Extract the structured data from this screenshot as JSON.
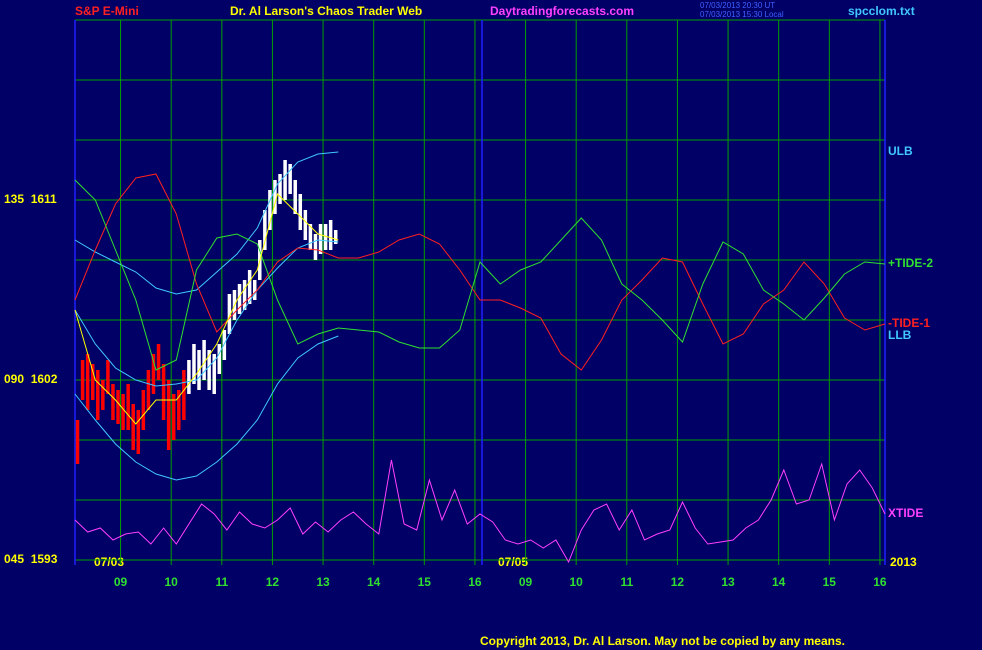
{
  "chart_data": {
    "type": "line",
    "instrument": "S&P E-Mini",
    "title": "Dr. Al Larson's Chaos Trader Web",
    "site": "Daytradingforecasts.com",
    "timestamp_ut": "07/03/2013 20:30 UT",
    "timestamp_local": "07/03/2013 15:30 Local",
    "file": "spcclom.txt",
    "copyright": "Copyright 2013, Dr. Al Larson. May not be copied by any means.",
    "date_labels": [
      "07/03",
      "07/05"
    ],
    "year_label": "2013",
    "xlim": [
      0,
      16
    ],
    "ylim": [
      1592.75,
      1620
    ],
    "xticks": [
      {
        "value": 0.9,
        "label": "09"
      },
      {
        "value": 1.9,
        "label": "10"
      },
      {
        "value": 2.9,
        "label": "11"
      },
      {
        "value": 3.9,
        "label": "12"
      },
      {
        "value": 4.9,
        "label": "13"
      },
      {
        "value": 5.9,
        "label": "14"
      },
      {
        "value": 6.9,
        "label": "15"
      },
      {
        "value": 7.9,
        "label": "16"
      },
      {
        "value": 8.9,
        "label": "09"
      },
      {
        "value": 9.9,
        "label": "10"
      },
      {
        "value": 10.9,
        "label": "11"
      },
      {
        "value": 11.9,
        "label": "12"
      },
      {
        "value": 12.9,
        "label": "13"
      },
      {
        "value": 13.9,
        "label": "14"
      },
      {
        "value": 14.9,
        "label": "15"
      },
      {
        "value": 15.9,
        "label": "16"
      }
    ],
    "yticks": [
      {
        "value": 1611,
        "label": "135  1611"
      },
      {
        "value": 1602,
        "label": "090  1602"
      },
      {
        "value": 1593,
        "label": "045  1593"
      }
    ],
    "ygrid": [
      1593,
      1596,
      1599,
      1602,
      1605,
      1608,
      1611,
      1614,
      1617,
      1620
    ],
    "grid": true,
    "grid_color": "#00a000",
    "bars": [
      {
        "color": "#ff0000",
        "x": [
          0.05,
          0.15,
          0.25,
          0.35,
          0.45,
          0.55,
          0.65,
          0.75,
          0.85,
          0.95,
          1.05,
          1.15,
          1.25,
          1.35,
          1.45,
          1.55,
          1.65,
          1.75,
          1.85,
          1.95,
          2.05,
          2.15
        ],
        "high": [
          1600,
          1603,
          1603.3,
          1602.8,
          1602.5,
          1602,
          1603,
          1601.8,
          1601.5,
          1601.3,
          1601.8,
          1600.8,
          1600.5,
          1601.5,
          1602.5,
          1603.3,
          1603.8,
          1602.8,
          1602,
          1601.3,
          1601.5,
          1602.5
        ],
        "low": [
          1597.8,
          1601,
          1600.5,
          1601,
          1600,
          1600.5,
          1601.3,
          1600,
          1599.8,
          1599.5,
          1599.5,
          1598.5,
          1598.3,
          1599.5,
          1600.5,
          1601.3,
          1602,
          1600,
          1598.5,
          1599,
          1599.5,
          1600
        ]
      },
      {
        "color": "#ffffff",
        "x": [
          2.25,
          2.35,
          2.45,
          2.55,
          2.65,
          2.75,
          2.85,
          2.95,
          3.05,
          3.15,
          3.25,
          3.35,
          3.45,
          3.55,
          3.65,
          3.75,
          3.85,
          3.95,
          4.05,
          4.15,
          4.25,
          4.35,
          4.45,
          4.55,
          4.65,
          4.75,
          4.85,
          4.95,
          5.05,
          5.15
        ],
        "high": [
          1603,
          1603.8,
          1603.5,
          1604,
          1603.5,
          1603.3,
          1603.8,
          1604.5,
          1606.3,
          1606.5,
          1606.8,
          1607,
          1607.5,
          1607,
          1609,
          1610.5,
          1611.5,
          1612,
          1612.3,
          1613,
          1612.8,
          1612,
          1611.3,
          1610.5,
          1609.8,
          1609.3,
          1609.8,
          1609.8,
          1610,
          1609.5
        ],
        "low": [
          1601.3,
          1601.8,
          1601.5,
          1602,
          1601.5,
          1601.3,
          1602.3,
          1603,
          1604.3,
          1605,
          1605.3,
          1605.5,
          1605.8,
          1606,
          1607,
          1608.5,
          1609.5,
          1610.3,
          1610.8,
          1611,
          1611.3,
          1610.3,
          1609.5,
          1609,
          1608.5,
          1608,
          1608.3,
          1608.5,
          1608.5,
          1608.8
        ]
      }
    ],
    "series": [
      {
        "name": "ULB",
        "color": "#40c8ff",
        "x": [
          0,
          0.4,
          0.8,
          1.2,
          1.6,
          2,
          2.4,
          2.8,
          3.2,
          3.6,
          4,
          4.4,
          4.8,
          5.2
        ],
        "values": [
          1609,
          1608.4,
          1607.9,
          1607.4,
          1606.6,
          1606.3,
          1606.5,
          1607.4,
          1608.3,
          1609.6,
          1611.8,
          1612.9,
          1613.3,
          1613.4
        ]
      },
      {
        "color": "#40c8ff",
        "x": [
          0,
          0.4,
          0.8,
          1.2,
          1.6,
          2,
          2.4,
          2.8,
          3.2,
          3.6,
          4,
          4.4,
          4.8,
          5.2
        ],
        "values": [
          1605.5,
          1603.8,
          1602.6,
          1602,
          1601.7,
          1601.8,
          1602,
          1603.1,
          1605,
          1606.5,
          1607.6,
          1608.6,
          1609,
          1608.9
        ]
      },
      {
        "name": "LLB",
        "color": "#40c8ff",
        "x": [
          0,
          0.4,
          0.8,
          1.2,
          1.6,
          2,
          2.4,
          2.8,
          3.2,
          3.6,
          4,
          4.4,
          4.8,
          5.2
        ],
        "values": [
          1601.3,
          1600,
          1598.8,
          1597.9,
          1597.3,
          1597,
          1597.2,
          1597.9,
          1598.8,
          1600,
          1601.8,
          1603.1,
          1603.8,
          1604.2
        ]
      },
      {
        "name": "-TIDE-1",
        "color": "#ff2020",
        "x": [
          0,
          0.4,
          0.8,
          1.2,
          1.6,
          2,
          2.4,
          2.8,
          3.2,
          3.6,
          4,
          4.4,
          4.8,
          5.2,
          5.6,
          6,
          6.4,
          6.8,
          7.2,
          7.6,
          8,
          8.4,
          8.8,
          9.2,
          9.6,
          10,
          10.4,
          10.8,
          11.2,
          11.6,
          12,
          12.4,
          12.8,
          13.2,
          13.6,
          14,
          14.4,
          14.8,
          15.2,
          15.6,
          16
        ],
        "values": [
          1606,
          1608.5,
          1610.8,
          1612.1,
          1612.3,
          1610.3,
          1606.8,
          1604.4,
          1605.5,
          1606.5,
          1607.9,
          1608.6,
          1608.5,
          1608.1,
          1608.1,
          1608.4,
          1609,
          1609.3,
          1608.8,
          1607.5,
          1606,
          1606,
          1605.6,
          1605.1,
          1603.3,
          1602.5,
          1604,
          1606,
          1607,
          1608.1,
          1607.9,
          1605.8,
          1603.8,
          1604.3,
          1605.8,
          1606.5,
          1607.9,
          1606.8,
          1605.1,
          1604.5,
          1604.8
        ]
      },
      {
        "name": "+TIDE-2",
        "color": "#30e030",
        "x": [
          0,
          0.4,
          0.8,
          1.2,
          1.6,
          2,
          2.4,
          2.8,
          3.2,
          3.6,
          4,
          4.4,
          4.8,
          5.2,
          5.6,
          6,
          6.4,
          6.8,
          7.2,
          7.6,
          8,
          8.4,
          8.8,
          9.2,
          9.6,
          10,
          10.4,
          10.8,
          11.2,
          11.6,
          12,
          12.4,
          12.8,
          13.2,
          13.6,
          14,
          14.4,
          14.8,
          15.2,
          15.6,
          16
        ],
        "values": [
          1612,
          1611,
          1608.5,
          1606,
          1602.5,
          1603,
          1607.5,
          1609.1,
          1609.3,
          1608.8,
          1606,
          1603.8,
          1604.3,
          1604.6,
          1604.5,
          1604.4,
          1603.9,
          1603.6,
          1603.6,
          1604.5,
          1607.9,
          1606.8,
          1607.5,
          1607.9,
          1609,
          1610.1,
          1609,
          1606.8,
          1606,
          1605,
          1603.9,
          1606.8,
          1608.9,
          1608.3,
          1606.5,
          1605.8,
          1605,
          1606.1,
          1607.3,
          1607.9,
          1607.8
        ]
      },
      {
        "name": "XTIDE",
        "color": "#ff40ff",
        "x": [
          0,
          0.25,
          0.5,
          0.75,
          1,
          1.25,
          1.5,
          1.75,
          2,
          2.25,
          2.5,
          2.75,
          3,
          3.25,
          3.5,
          3.75,
          4,
          4.25,
          4.5,
          4.75,
          5,
          5.25,
          5.5,
          5.75,
          6,
          6.25,
          6.5,
          6.75,
          7,
          7.25,
          7.5,
          7.75,
          8,
          8.25,
          8.5,
          8.75,
          9,
          9.25,
          9.5,
          9.75,
          10,
          10.25,
          10.5,
          10.75,
          11,
          11.25,
          11.5,
          11.75,
          12,
          12.25,
          12.5,
          12.75,
          13,
          13.25,
          13.5,
          13.75,
          14,
          14.25,
          14.5,
          14.75,
          15,
          15.25,
          15.5,
          15.75,
          16
        ],
        "values": [
          1595,
          1594.4,
          1594.6,
          1594,
          1594.3,
          1594.4,
          1593.8,
          1594.6,
          1593.8,
          1594.8,
          1595.8,
          1595.3,
          1594.5,
          1595.4,
          1594.8,
          1594.6,
          1595,
          1595.6,
          1594.3,
          1594.9,
          1594.4,
          1595,
          1595.4,
          1594.8,
          1594.3,
          1598,
          1594.8,
          1594.5,
          1597,
          1595,
          1596.5,
          1594.8,
          1595.3,
          1594.9,
          1594,
          1593.8,
          1594,
          1593.6,
          1594,
          1592.9,
          1594.5,
          1595.5,
          1595.8,
          1594.5,
          1595.5,
          1594,
          1594.3,
          1594.5,
          1595.9,
          1594.6,
          1593.8,
          1593.9,
          1594,
          1594.6,
          1595,
          1596,
          1597.5,
          1595.8,
          1596,
          1597.8,
          1595,
          1596.8,
          1597.5,
          1596.6,
          1595.3
        ]
      },
      {
        "color": "#ffff00",
        "x": [
          0,
          0.4,
          0.8,
          1.2,
          1.6,
          2,
          2.4,
          2.8,
          3.2,
          3.6,
          4,
          4.4,
          4.8,
          5.2
        ],
        "values": [
          1605.5,
          1602,
          1601,
          1599.8,
          1601,
          1601,
          1602.3,
          1603.8,
          1606,
          1607.5,
          1611.3,
          1610.3,
          1609.3,
          1609
        ]
      }
    ]
  }
}
